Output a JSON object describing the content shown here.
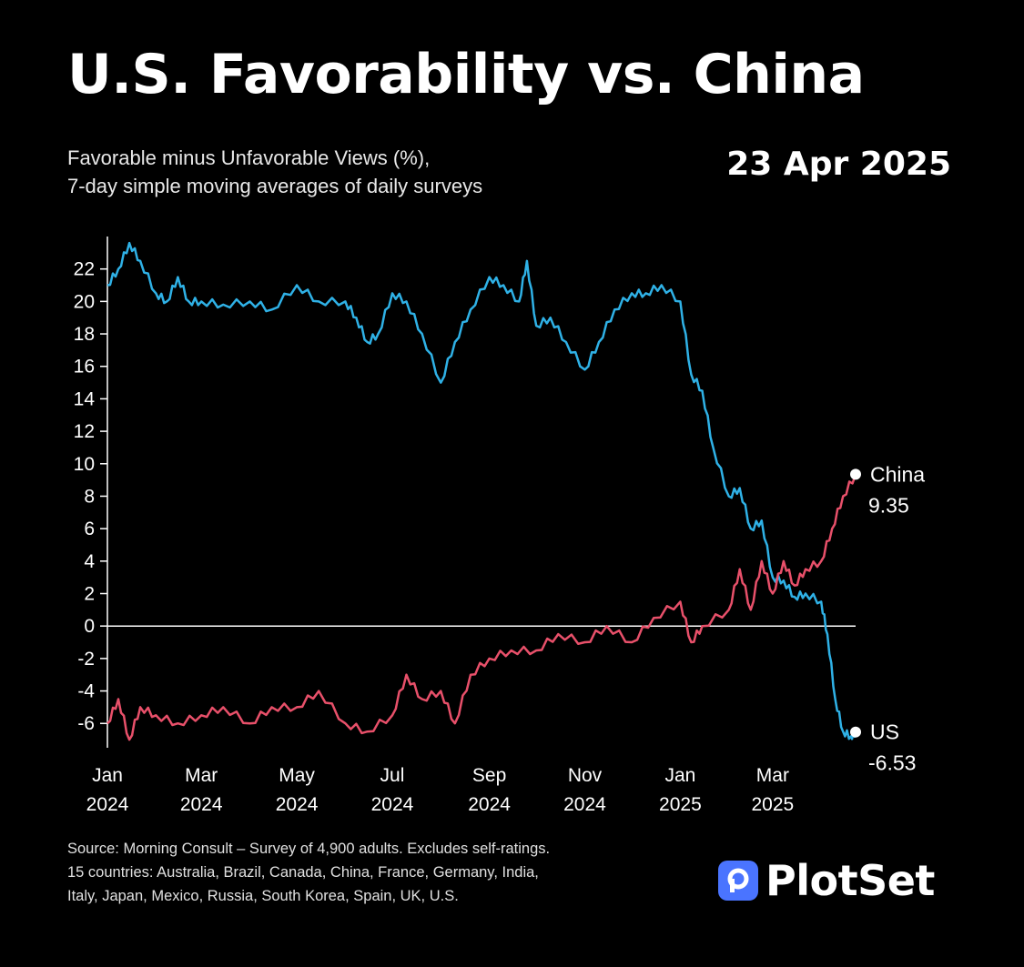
{
  "header": {
    "title": "U.S. Favorability vs. China",
    "subtitle_line1": "Favorable minus Unfavorable Views (%),",
    "subtitle_line2": "7-day simple moving averages of daily surveys",
    "date": "23 Apr 2025"
  },
  "footer": {
    "source_line1": "Source: Morning Consult – Survey of 4,900 adults. Excludes self-ratings.",
    "source_line2": "15 countries: Australia, Brazil, Canada, China, France, Germany, India,",
    "source_line3": "Italy, Japan, Mexico, Russia, South Korea, Spain, UK, U.S.",
    "brand": "PlotSet"
  },
  "colors": {
    "us": "#2fb1e6",
    "china": "#e8506a",
    "axis": "#ffffff",
    "text": "#ffffff",
    "brand_icon": "#4a74ff"
  },
  "chart_data": {
    "type": "line",
    "title": "U.S. Favorability vs. China",
    "subtitle": "Favorable minus Unfavorable Views (%), 7-day simple moving averages of daily surveys",
    "xlabel": "",
    "ylabel": "",
    "x_range": [
      "2024-01",
      "2025-04-23"
    ],
    "ylim": [
      -7.5,
      24
    ],
    "yticks": [
      -6,
      -4,
      -2,
      0,
      2,
      4,
      6,
      8,
      10,
      12,
      14,
      16,
      18,
      20,
      22
    ],
    "xticks": [
      {
        "x": "2024-01",
        "line1": "Jan",
        "line2": "2024"
      },
      {
        "x": "2024-03",
        "line1": "Mar",
        "line2": "2024"
      },
      {
        "x": "2024-05",
        "line1": "May",
        "line2": "2024"
      },
      {
        "x": "2024-07",
        "line1": "Jul",
        "line2": "2024"
      },
      {
        "x": "2024-09",
        "line1": "Sep",
        "line2": "2024"
      },
      {
        "x": "2024-11",
        "line1": "Nov",
        "line2": "2024"
      },
      {
        "x": "2025-01",
        "line1": "Jan",
        "line2": "2025"
      },
      {
        "x": "2025-03",
        "line1": "Mar",
        "line2": "2025"
      }
    ],
    "grid": false,
    "zero_line": true,
    "series": [
      {
        "name": "US",
        "end_label": "US",
        "end_value_label": "-6.53",
        "x": [
          "2024-01",
          "2024-01-08",
          "2024-01-15",
          "2024-01-22",
          "2024-02",
          "2024-02-08",
          "2024-02-15",
          "2024-02-22",
          "2024-03",
          "2024-03-15",
          "2024-04",
          "2024-04-15",
          "2024-05",
          "2024-05-15",
          "2024-06",
          "2024-06-08",
          "2024-06-15",
          "2024-06-22",
          "2024-07",
          "2024-07-10",
          "2024-07-20",
          "2024-08",
          "2024-08-10",
          "2024-08-20",
          "2024-09",
          "2024-09-10",
          "2024-09-20",
          "2024-09-25",
          "2024-10",
          "2024-10-10",
          "2024-10-20",
          "2024-11",
          "2024-11-10",
          "2024-11-20",
          "2024-12",
          "2024-12-10",
          "2024-12-20",
          "2025-01",
          "2025-01-08",
          "2025-01-15",
          "2025-01-22",
          "2025-02",
          "2025-02-08",
          "2025-02-15",
          "2025-02-22",
          "2025-03",
          "2025-03-08",
          "2025-03-15",
          "2025-03-22",
          "2025-04",
          "2025-04-05",
          "2025-04-10",
          "2025-04-15",
          "2025-04-20",
          "2025-04-23"
        ],
        "values": [
          21.0,
          22.0,
          23.6,
          22.5,
          20.5,
          20.0,
          21.5,
          20.0,
          20.0,
          19.8,
          20.0,
          19.5,
          21.0,
          20.0,
          20.0,
          19.0,
          17.5,
          18.0,
          20.5,
          20.0,
          18.0,
          15.0,
          17.5,
          19.5,
          21.5,
          21.0,
          20.0,
          22.5,
          18.5,
          19.0,
          17.5,
          15.8,
          17.5,
          19.5,
          20.5,
          20.5,
          21.0,
          20.0,
          15.5,
          14.5,
          11.0,
          8.0,
          8.5,
          6.0,
          6.5,
          3.0,
          2.8,
          1.8,
          2.0,
          1.5,
          -0.5,
          -4.5,
          -6.5,
          -6.8,
          -6.53
        ]
      },
      {
        "name": "China",
        "end_label": "China",
        "end_value_label": "9.35",
        "x": [
          "2024-01",
          "2024-01-08",
          "2024-01-15",
          "2024-01-22",
          "2024-02",
          "2024-02-15",
          "2024-03",
          "2024-03-15",
          "2024-04",
          "2024-04-15",
          "2024-05",
          "2024-05-15",
          "2024-06",
          "2024-06-15",
          "2024-07",
          "2024-07-10",
          "2024-07-20",
          "2024-08",
          "2024-08-10",
          "2024-08-20",
          "2024-09",
          "2024-09-15",
          "2024-10",
          "2024-10-15",
          "2024-11",
          "2024-11-15",
          "2024-12",
          "2024-12-15",
          "2025-01",
          "2025-01-08",
          "2025-01-15",
          "2025-02",
          "2025-02-08",
          "2025-02-15",
          "2025-02-22",
          "2025-03",
          "2025-03-08",
          "2025-03-15",
          "2025-03-22",
          "2025-04",
          "2025-04-08",
          "2025-04-15",
          "2025-04-23"
        ],
        "values": [
          -6.0,
          -4.5,
          -7.0,
          -5.0,
          -5.5,
          -6.0,
          -5.5,
          -5.0,
          -6.0,
          -5.0,
          -5.0,
          -4.0,
          -6.0,
          -6.5,
          -5.5,
          -3.0,
          -4.5,
          -4.0,
          -6.0,
          -3.0,
          -2.0,
          -1.5,
          -1.5,
          -0.5,
          -1.0,
          0.0,
          -1.0,
          0.5,
          1.5,
          -1.0,
          0.0,
          1.0,
          3.5,
          1.0,
          4.0,
          2.0,
          4.0,
          2.5,
          3.5,
          4.0,
          6.0,
          8.0,
          9.35
        ]
      }
    ]
  }
}
